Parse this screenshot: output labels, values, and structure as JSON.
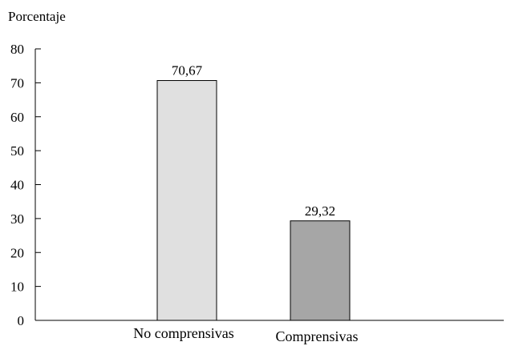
{
  "chart_data": {
    "type": "bar",
    "ylabel": "Porcentaje",
    "xlabel": "",
    "title": "",
    "categories": [
      "No comprensivas",
      "Comprensivas"
    ],
    "values": [
      70.67,
      29.32
    ],
    "value_labels": [
      "70,67",
      "29,32"
    ],
    "bar_colors": [
      "#e0e0e0",
      "#a6a6a6"
    ],
    "ylim": [
      0,
      80
    ],
    "yticks": [
      0,
      10,
      20,
      30,
      40,
      50,
      60,
      70,
      80
    ],
    "grid": false
  }
}
